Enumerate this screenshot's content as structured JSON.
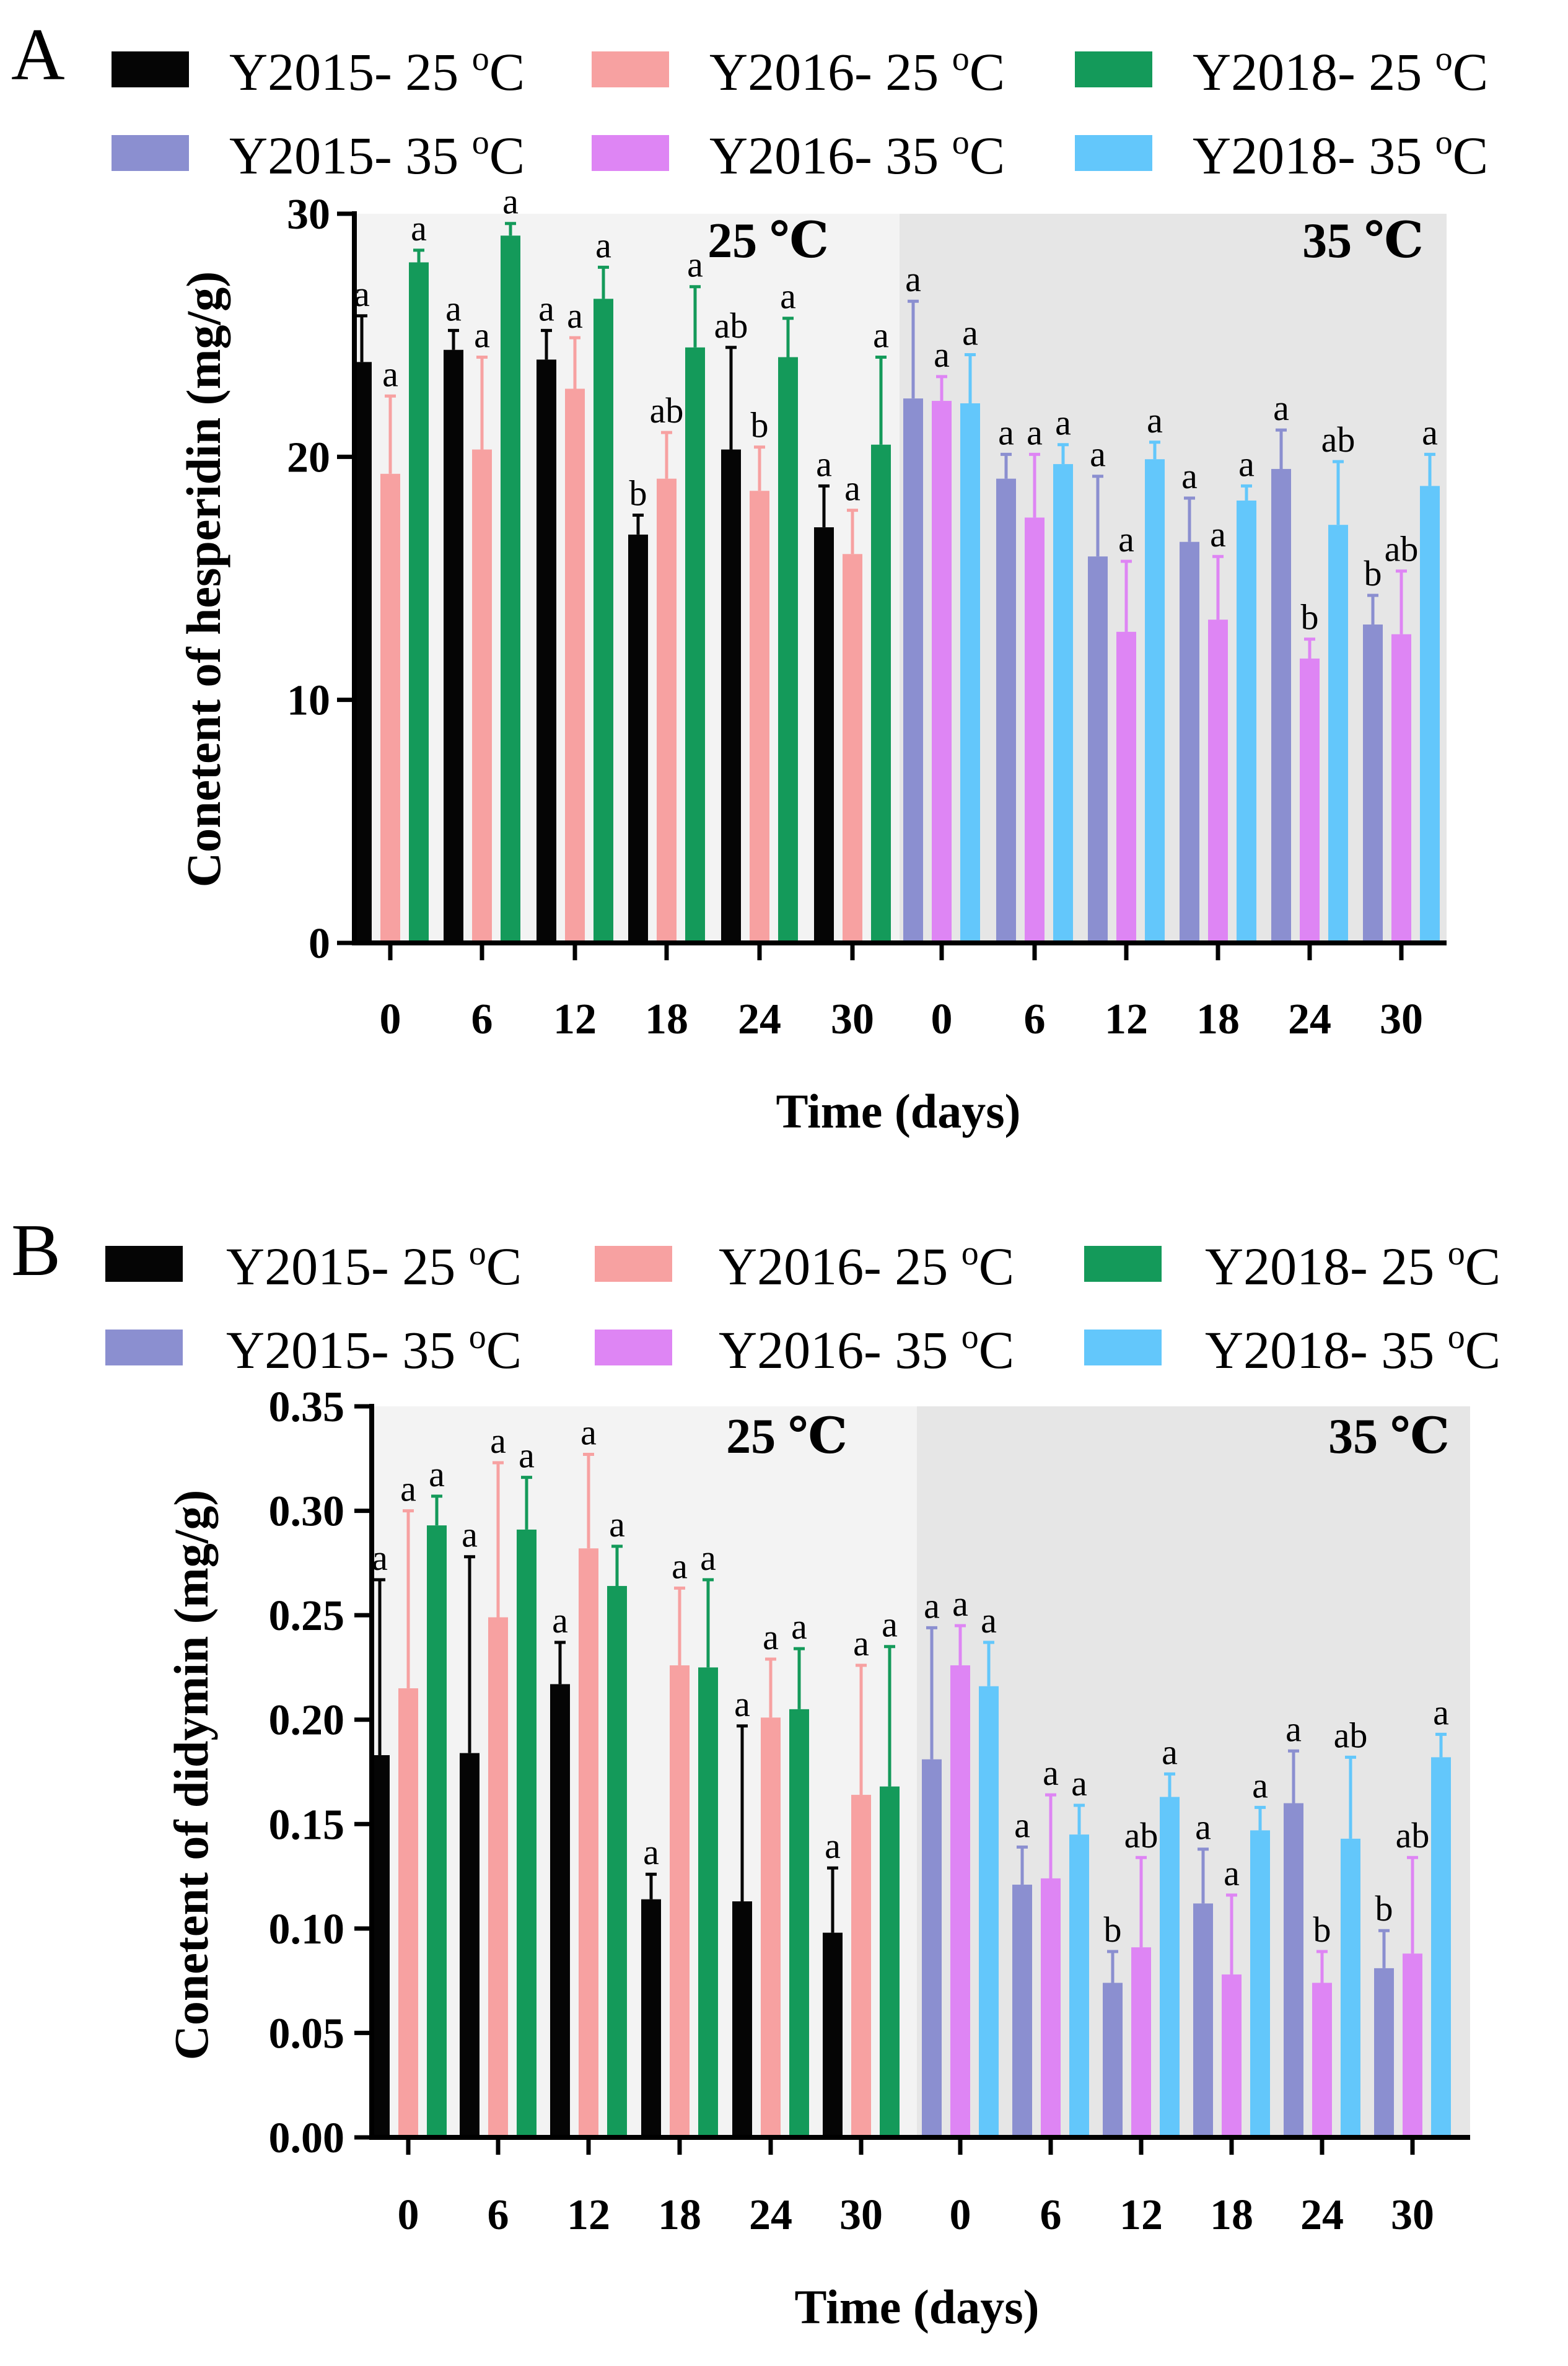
{
  "colors": {
    "Y2015-25": "#050505",
    "Y2016-25": "#f7a1a1",
    "Y2018-25": "#149a5a",
    "Y2015-35": "#8b8fd0",
    "Y2016-35": "#de85f4",
    "Y2018-35": "#63c7fb",
    "bg25": "#f3f3f3",
    "bg35": "#e6e6e6"
  },
  "chart_data": [
    {
      "panel": "A",
      "type": "bar",
      "title": "",
      "xlabel": "Time (days)",
      "ylabel": "Conetent of hesperidin (mg/g)",
      "ylim": [
        0,
        30
      ],
      "yticks": [
        "0",
        "10",
        "20",
        "30"
      ],
      "region_labels": [
        "25 ℃",
        "35 ℃"
      ],
      "legend": [
        {
          "name": "Y2015- 25 ",
          "sup": "o",
          "unit": "C",
          "color_key": "Y2015-25"
        },
        {
          "name": "Y2016- 25 ",
          "sup": "o",
          "unit": "C",
          "color_key": "Y2016-25"
        },
        {
          "name": "Y2018- 25 ",
          "sup": "o",
          "unit": "C",
          "color_key": "Y2018-25"
        },
        {
          "name": "Y2015- 35 ",
          "sup": "o",
          "unit": "C",
          "color_key": "Y2015-35"
        },
        {
          "name": "Y2016- 35 ",
          "sup": "o",
          "unit": "C",
          "color_key": "Y2016-35"
        },
        {
          "name": "Y2018- 35 ",
          "sup": "o",
          "unit": "C",
          "color_key": "Y2018-35"
        }
      ],
      "groups": [
        {
          "region": "25 ℃",
          "categories": [
            "0",
            "6",
            "12",
            "18",
            "24",
            "30"
          ],
          "series": [
            {
              "name": "Y2015- 25 °C",
              "color_key": "Y2015-25",
              "values": [
                23.9,
                24.4,
                24.0,
                16.8,
                20.3,
                17.1
              ],
              "errors": [
                1.9,
                0.8,
                1.2,
                0.8,
                4.2,
                1.7
              ],
              "labels": [
                "a",
                "a",
                "a",
                "b",
                "ab",
                "a"
              ]
            },
            {
              "name": "Y2016- 25 °C",
              "color_key": "Y2016-25",
              "values": [
                19.3,
                20.3,
                22.8,
                19.1,
                18.6,
                16.0
              ],
              "errors": [
                3.2,
                3.8,
                2.1,
                1.9,
                1.8,
                1.8
              ],
              "labels": [
                "a",
                "a",
                "a",
                "ab",
                "b",
                "a"
              ]
            },
            {
              "name": "Y2018- 25 °C",
              "color_key": "Y2018-25",
              "values": [
                28.0,
                29.1,
                26.5,
                24.5,
                24.1,
                20.5
              ],
              "errors": [
                0.5,
                0.5,
                1.3,
                2.5,
                1.6,
                3.6
              ],
              "labels": [
                "a",
                "a",
                "a",
                "a",
                "a",
                "a"
              ]
            }
          ]
        },
        {
          "region": "35 ℃",
          "categories": [
            "0",
            "6",
            "12",
            "18",
            "24",
            "30"
          ],
          "series": [
            {
              "name": "Y2015- 35 °C",
              "color_key": "Y2015-35",
              "values": [
                22.4,
                19.1,
                15.9,
                16.5,
                19.5,
                13.1
              ],
              "errors": [
                4.0,
                1.0,
                3.3,
                1.8,
                1.6,
                1.2
              ],
              "labels": [
                "a",
                "a",
                "a",
                "a",
                "a",
                "b"
              ]
            },
            {
              "name": "Y2016- 35 °C",
              "color_key": "Y2016-35",
              "values": [
                22.3,
                17.5,
                12.8,
                13.3,
                11.7,
                12.7
              ],
              "errors": [
                1.0,
                2.6,
                2.9,
                2.6,
                0.8,
                2.6
              ],
              "labels": [
                "a",
                "a",
                "a",
                "a",
                "b",
                "ab"
              ]
            },
            {
              "name": "Y2018- 35 °C",
              "color_key": "Y2018-35",
              "values": [
                22.2,
                19.7,
                19.9,
                18.2,
                17.2,
                18.8
              ],
              "errors": [
                2.0,
                0.8,
                0.7,
                0.6,
                2.6,
                1.3
              ],
              "labels": [
                "a",
                "a",
                "a",
                "a",
                "ab",
                "a"
              ]
            }
          ]
        }
      ]
    },
    {
      "panel": "B",
      "type": "bar",
      "title": "",
      "xlabel": "Time (days)",
      "ylabel": "Conetent of didymin (mg/g)",
      "ylim": [
        0,
        0.35
      ],
      "yticks": [
        "0.00",
        "0.05",
        "0.10",
        "0.15",
        "0.20",
        "0.25",
        "0.30",
        "0.35"
      ],
      "region_labels": [
        "25 ℃",
        "35 ℃"
      ],
      "legend": [
        {
          "name": "Y2015- 25 ",
          "sup": "o",
          "unit": "C",
          "color_key": "Y2015-25"
        },
        {
          "name": "Y2016- 25 ",
          "sup": "o",
          "unit": "C",
          "color_key": "Y2016-25"
        },
        {
          "name": "Y2018- 25 ",
          "sup": "o",
          "unit": "C",
          "color_key": "Y2018-25"
        },
        {
          "name": "Y2015- 35 ",
          "sup": "o",
          "unit": "C",
          "color_key": "Y2015-35"
        },
        {
          "name": "Y2016- 35 ",
          "sup": "o",
          "unit": "C",
          "color_key": "Y2016-35"
        },
        {
          "name": "Y2018- 35 ",
          "sup": "o",
          "unit": "C",
          "color_key": "Y2018-35"
        }
      ],
      "groups": [
        {
          "region": "25 ℃",
          "categories": [
            "0",
            "6",
            "12",
            "18",
            "24",
            "30"
          ],
          "series": [
            {
              "name": "Y2015- 25 °C",
              "color_key": "Y2015-25",
              "values": [
                0.183,
                0.184,
                0.217,
                0.114,
                0.113,
                0.098
              ],
              "errors": [
                0.084,
                0.094,
                0.02,
                0.012,
                0.084,
                0.031
              ],
              "labels": [
                "a",
                "a",
                "a",
                "a",
                "a",
                "a"
              ]
            },
            {
              "name": "Y2016- 25 °C",
              "color_key": "Y2016-25",
              "values": [
                0.215,
                0.249,
                0.282,
                0.226,
                0.201,
                0.164
              ],
              "errors": [
                0.085,
                0.074,
                0.045,
                0.037,
                0.028,
                0.062
              ],
              "labels": [
                "a",
                "a",
                "a",
                "a",
                "a",
                "a"
              ]
            },
            {
              "name": "Y2018- 25 °C",
              "color_key": "Y2018-25",
              "values": [
                0.293,
                0.291,
                0.264,
                0.225,
                0.205,
                0.168
              ],
              "errors": [
                0.014,
                0.025,
                0.019,
                0.042,
                0.029,
                0.067
              ],
              "labels": [
                "a",
                "a",
                "a",
                "a",
                "a",
                "a"
              ]
            }
          ]
        },
        {
          "region": "35 ℃",
          "categories": [
            "0",
            "6",
            "12",
            "18",
            "24",
            "30"
          ],
          "series": [
            {
              "name": "Y2015- 35 °C",
              "color_key": "Y2015-35",
              "values": [
                0.181,
                0.121,
                0.074,
                0.112,
                0.16,
                0.081
              ],
              "errors": [
                0.063,
                0.018,
                0.015,
                0.026,
                0.025,
                0.018
              ],
              "labels": [
                "a",
                "a",
                "b",
                "a",
                "a",
                "b"
              ]
            },
            {
              "name": "Y2016- 35 °C",
              "color_key": "Y2016-35",
              "values": [
                0.226,
                0.124,
                0.091,
                0.078,
                0.074,
                0.088
              ],
              "errors": [
                0.019,
                0.04,
                0.043,
                0.038,
                0.015,
                0.046
              ],
              "labels": [
                "a",
                "a",
                "ab",
                "a",
                "b",
                "ab"
              ]
            },
            {
              "name": "Y2018- 35 °C",
              "color_key": "Y2018-35",
              "values": [
                0.216,
                0.145,
                0.163,
                0.147,
                0.143,
                0.182
              ],
              "errors": [
                0.021,
                0.014,
                0.011,
                0.011,
                0.039,
                0.011
              ],
              "labels": [
                "a",
                "a",
                "a",
                "a",
                "ab",
                "a"
              ]
            }
          ]
        }
      ]
    }
  ]
}
